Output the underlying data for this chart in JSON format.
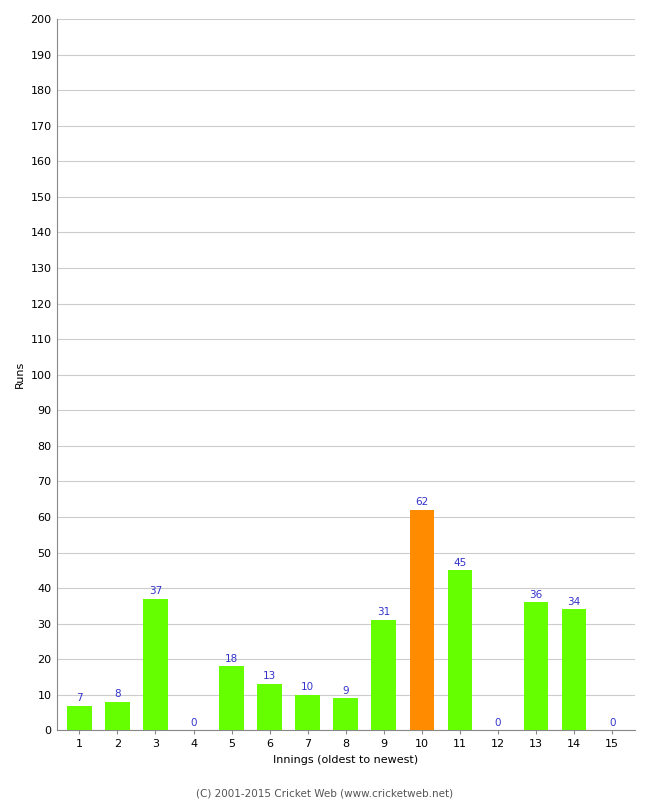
{
  "xlabel": "Innings (oldest to newest)",
  "ylabel": "Runs",
  "categories": [
    1,
    2,
    3,
    4,
    5,
    6,
    7,
    8,
    9,
    10,
    11,
    12,
    13,
    14,
    15
  ],
  "values": [
    7,
    8,
    37,
    0,
    18,
    13,
    10,
    9,
    31,
    62,
    45,
    0,
    36,
    34,
    0
  ],
  "bar_colors": [
    "#66ff00",
    "#66ff00",
    "#66ff00",
    "#66ff00",
    "#66ff00",
    "#66ff00",
    "#66ff00",
    "#66ff00",
    "#66ff00",
    "#ff8c00",
    "#66ff00",
    "#66ff00",
    "#66ff00",
    "#66ff00",
    "#66ff00"
  ],
  "label_color": "#3333cc",
  "ylim": [
    0,
    200
  ],
  "yticks": [
    0,
    10,
    20,
    30,
    40,
    50,
    60,
    70,
    80,
    90,
    100,
    110,
    120,
    130,
    140,
    150,
    160,
    170,
    180,
    190,
    200
  ],
  "background_color": "#ffffff",
  "grid_color": "#cccccc",
  "footer": "(C) 2001-2015 Cricket Web (www.cricketweb.net)",
  "bar_width": 0.65,
  "label_fontsize": 7.5,
  "tick_fontsize": 8,
  "axis_label_fontsize": 8,
  "footer_fontsize": 7.5
}
